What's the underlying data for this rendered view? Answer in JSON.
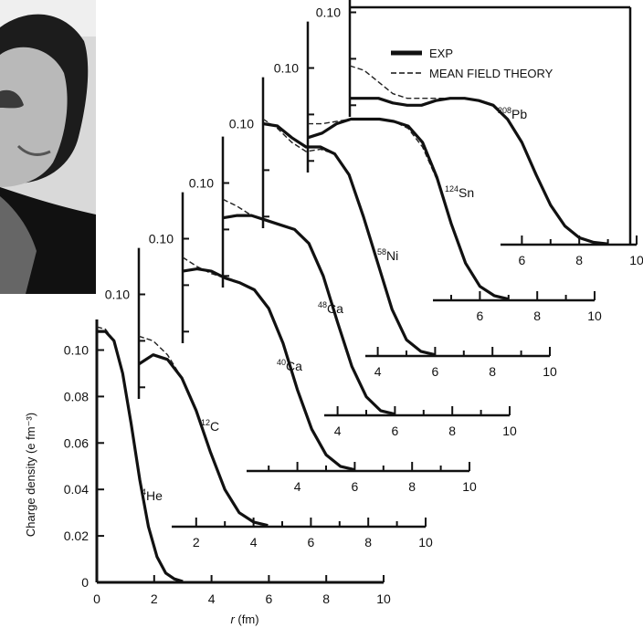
{
  "chart_data": {
    "type": "line",
    "title": "",
    "xlabel": "r (fm)",
    "xlabel_italic": "r",
    "xlabel_rest": " (fm)",
    "ylabel": "Charge density (e fm⁻³)",
    "ylim": [
      0,
      0.11
    ],
    "xlim": [
      0,
      10
    ],
    "x_ticks": [
      "0",
      "2",
      "4",
      "6",
      "8",
      "10"
    ],
    "y_ticks": [
      "0",
      "0.02",
      "0.04",
      "0.06",
      "0.08",
      "0.10"
    ],
    "offset_y_tick": "0.10",
    "legend": [
      {
        "label": "EXP",
        "style": "thick-solid"
      },
      {
        "label": "MEAN FIELD THEORY",
        "style": "dashed"
      }
    ],
    "legend_placement": "top-right",
    "series": [
      {
        "name": "4He",
        "mass": "4",
        "element": "He",
        "exp": {
          "x": [
            0,
            0.3,
            0.6,
            0.9,
            1.2,
            1.5,
            1.8,
            2.1,
            2.4,
            2.7,
            3.0
          ],
          "y": [
            0.108,
            0.108,
            0.104,
            0.09,
            0.068,
            0.044,
            0.024,
            0.011,
            0.004,
            0.0015,
            0.0004
          ]
        },
        "theory": {
          "x": [
            0,
            0.3,
            0.6,
            0.9,
            1.2,
            1.5,
            1.8,
            2.1,
            2.4,
            2.7,
            3.0
          ],
          "y": [
            0.11,
            0.109,
            0.104,
            0.09,
            0.068,
            0.044,
            0.024,
            0.011,
            0.004,
            0.0015,
            0.0004
          ]
        }
      },
      {
        "name": "12C",
        "mass": "12",
        "element": "C",
        "exp": {
          "x": [
            0,
            0.5,
            1.0,
            1.5,
            2.0,
            2.5,
            3.0,
            3.5,
            4.0,
            4.5
          ],
          "y": [
            0.07,
            0.074,
            0.072,
            0.064,
            0.05,
            0.032,
            0.016,
            0.006,
            0.002,
            0.0005
          ]
        },
        "theory": {
          "x": [
            0,
            0.5,
            1.0,
            1.5,
            2.0,
            2.5,
            3.0,
            3.5,
            4.0,
            4.5
          ],
          "y": [
            0.082,
            0.08,
            0.074,
            0.064,
            0.05,
            0.032,
            0.016,
            0.006,
            0.002,
            0.0005
          ]
        }
      },
      {
        "name": "40Ca",
        "mass": "40",
        "element": "Ca",
        "exp": {
          "x": [
            0,
            0.5,
            1.0,
            1.5,
            2.0,
            2.5,
            3.0,
            3.5,
            4.0,
            4.5,
            5.0,
            5.5,
            6.0
          ],
          "y": [
            0.086,
            0.087,
            0.086,
            0.083,
            0.081,
            0.078,
            0.07,
            0.055,
            0.035,
            0.018,
            0.007,
            0.002,
            0.0005
          ]
        },
        "theory": {
          "x": [
            0,
            0.5,
            1.0,
            1.5,
            2.0,
            2.5,
            3.0,
            3.5,
            4.0,
            4.5,
            5.0,
            5.5,
            6.0
          ],
          "y": [
            0.092,
            0.088,
            0.085,
            0.083,
            0.081,
            0.078,
            0.07,
            0.055,
            0.035,
            0.018,
            0.007,
            0.002,
            0.0005
          ]
        }
      },
      {
        "name": "48Ca",
        "mass": "48",
        "element": "Ca",
        "exp": {
          "x": [
            0,
            0.5,
            1.0,
            1.5,
            2.0,
            2.5,
            3.0,
            3.5,
            4.0,
            4.5,
            5.0,
            5.5,
            6.0
          ],
          "y": [
            0.085,
            0.086,
            0.086,
            0.084,
            0.082,
            0.08,
            0.074,
            0.06,
            0.04,
            0.021,
            0.008,
            0.002,
            0.0005
          ]
        },
        "theory": {
          "x": [
            0,
            0.5,
            1.0,
            1.5,
            2.0,
            2.5,
            3.0,
            3.5,
            4.0,
            4.5,
            5.0,
            5.5,
            6.0
          ],
          "y": [
            0.093,
            0.09,
            0.086,
            0.084,
            0.082,
            0.08,
            0.074,
            0.06,
            0.04,
            0.021,
            0.008,
            0.002,
            0.0005
          ]
        }
      },
      {
        "name": "58Ni",
        "mass": "58",
        "element": "Ni",
        "exp": {
          "x": [
            0,
            0.5,
            1.0,
            1.5,
            2.0,
            2.5,
            3.0,
            3.5,
            4.0,
            4.5,
            5.0,
            5.5,
            6.0
          ],
          "y": [
            0.1,
            0.099,
            0.094,
            0.09,
            0.09,
            0.087,
            0.078,
            0.06,
            0.04,
            0.02,
            0.007,
            0.002,
            0.0005
          ]
        },
        "theory": {
          "x": [
            0,
            0.5,
            1.0,
            1.5,
            2.0,
            2.5,
            3.0,
            3.5,
            4.0,
            4.5,
            5.0,
            5.5,
            6.0
          ],
          "y": [
            0.102,
            0.098,
            0.092,
            0.088,
            0.089,
            0.087,
            0.078,
            0.06,
            0.04,
            0.02,
            0.007,
            0.002,
            0.0005
          ]
        }
      },
      {
        "name": "124Sn",
        "mass": "124",
        "element": "Sn",
        "exp": {
          "x": [
            0,
            0.5,
            1.0,
            1.5,
            2.0,
            2.5,
            3.0,
            3.5,
            4.0,
            4.5,
            5.0,
            5.5,
            6.0,
            6.5,
            7.0
          ],
          "y": [
            0.07,
            0.072,
            0.076,
            0.078,
            0.078,
            0.078,
            0.077,
            0.075,
            0.068,
            0.053,
            0.033,
            0.016,
            0.006,
            0.002,
            0.0005
          ]
        },
        "theory": {
          "x": [
            0,
            0.5,
            1.0,
            1.5,
            2.0,
            2.5,
            3.0,
            3.5,
            4.0,
            4.5,
            5.0,
            5.5,
            6.0,
            6.5,
            7.0
          ],
          "y": [
            0.076,
            0.076,
            0.077,
            0.078,
            0.078,
            0.078,
            0.077,
            0.074,
            0.066,
            0.052,
            0.033,
            0.016,
            0.006,
            0.002,
            0.0005
          ]
        }
      },
      {
        "name": "208Pb",
        "mass": "208",
        "element": "Pb",
        "exp": {
          "x": [
            0,
            0.5,
            1.0,
            1.5,
            2.0,
            2.5,
            3.0,
            3.5,
            4.0,
            4.5,
            5.0,
            5.5,
            6.0,
            6.5,
            7.0,
            7.5,
            8.0,
            8.5,
            9.0
          ],
          "y": [
            0.063,
            0.063,
            0.063,
            0.061,
            0.06,
            0.06,
            0.062,
            0.063,
            0.063,
            0.062,
            0.06,
            0.054,
            0.044,
            0.03,
            0.017,
            0.008,
            0.003,
            0.001,
            0.0003
          ]
        },
        "theory": {
          "x": [
            0,
            0.5,
            1.0,
            1.5,
            2.0,
            2.5,
            3.0,
            3.5,
            4.0,
            4.5,
            5.0,
            5.5,
            6.0,
            6.5,
            7.0,
            7.5,
            8.0,
            8.5,
            9.0
          ],
          "y": [
            0.077,
            0.075,
            0.07,
            0.065,
            0.063,
            0.063,
            0.063,
            0.063,
            0.063,
            0.062,
            0.06,
            0.054,
            0.044,
            0.03,
            0.017,
            0.008,
            0.003,
            0.001,
            0.0003
          ]
        }
      }
    ]
  },
  "photo": {
    "description_label": "portrait photograph"
  }
}
